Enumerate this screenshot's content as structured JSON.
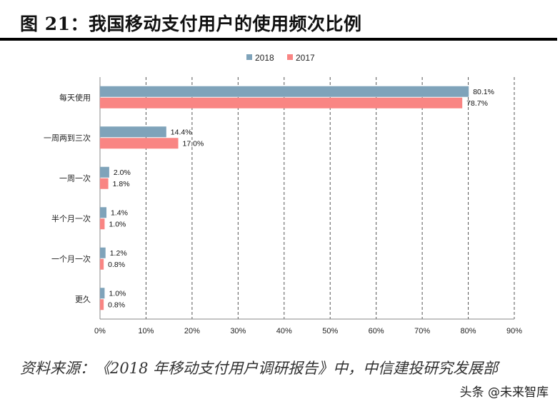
{
  "title": "图 21：我国移动支付用户的使用频次比例",
  "source": "资料来源：《2018 年移动支付用户调研报告》中，中信建投研究发展部",
  "watermark": "头条 @未来智库",
  "chart_data": {
    "type": "bar",
    "orientation": "horizontal",
    "categories": [
      "每天使用",
      "一周两到三次",
      "一周一次",
      "半个月一次",
      "一个月一次",
      "更久"
    ],
    "series": [
      {
        "name": "2018",
        "color": "#7FA3BA",
        "values": [
          80.1,
          14.4,
          2.0,
          1.4,
          1.2,
          1.0
        ]
      },
      {
        "name": "2017",
        "color": "#F98583",
        "values": [
          78.7,
          17.0,
          1.8,
          1.0,
          0.8,
          0.8
        ]
      }
    ],
    "data_labels": [
      [
        "80.1%",
        "14.4%",
        "2.0%",
        "1.4%",
        "1.2%",
        "1.0%"
      ],
      [
        "78.7%",
        "17.0%",
        "1.8%",
        "1.0%",
        "0.8%",
        "0.8%"
      ]
    ],
    "xlim": [
      0,
      90
    ],
    "xticks": [
      0,
      10,
      20,
      30,
      40,
      50,
      60,
      70,
      80,
      90
    ],
    "xtick_labels": [
      "0%",
      "10%",
      "20%",
      "30%",
      "40%",
      "50%",
      "60%",
      "70%",
      "80%",
      "90%"
    ],
    "grid": "vertical dashed",
    "legend": "top-center"
  }
}
